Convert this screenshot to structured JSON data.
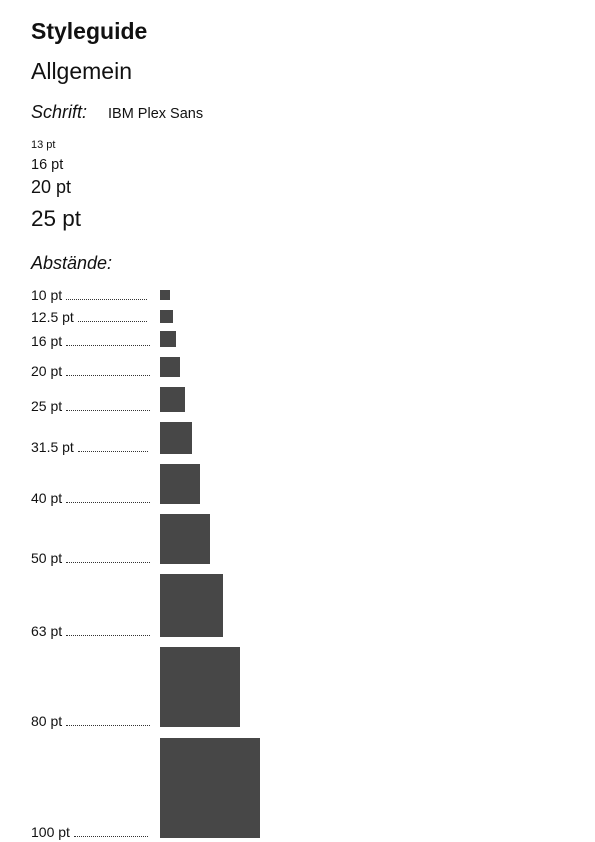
{
  "header": {
    "title": "Styleguide",
    "section": "Allgemein"
  },
  "font": {
    "label": "Schrift:",
    "name": "IBM Plex Sans"
  },
  "font_sizes": [
    "13 pt",
    "16 pt",
    "20 pt",
    "25 pt"
  ],
  "spacing": {
    "heading": "Abstände:",
    "items": [
      {
        "label": "10 pt",
        "value": 10
      },
      {
        "label": "12.5 pt",
        "value": 12.5
      },
      {
        "label": "16 pt",
        "value": 16
      },
      {
        "label": "20 pt",
        "value": 20
      },
      {
        "label": "25 pt",
        "value": 25
      },
      {
        "label": "31.5 pt",
        "value": 31.5
      },
      {
        "label": "40 pt",
        "value": 40
      },
      {
        "label": "50 pt",
        "value": 50
      },
      {
        "label": "63 pt",
        "value": 63
      },
      {
        "label": "80 pt",
        "value": 80
      },
      {
        "label": "100 pt",
        "value": 100
      }
    ]
  },
  "colors": {
    "swatch": "#474747",
    "text": "#111111"
  }
}
